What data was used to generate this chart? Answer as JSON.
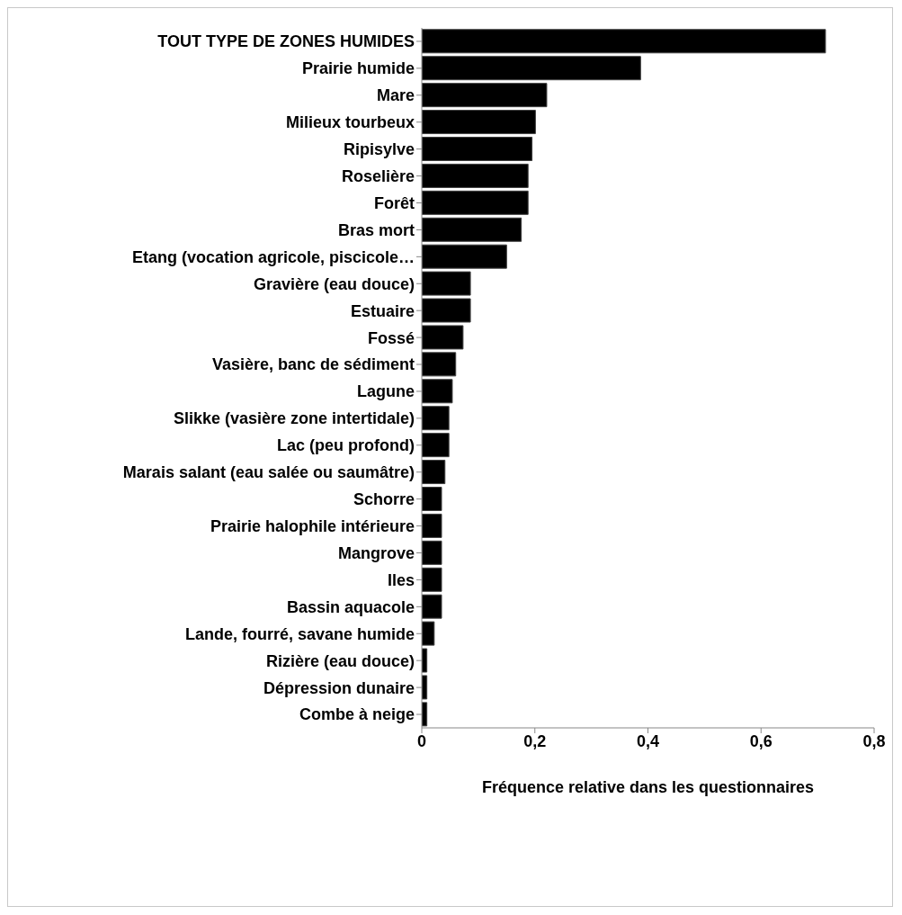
{
  "chart_data": {
    "type": "bar",
    "orientation": "horizontal",
    "xlabel": "Fréquence relative dans les questionnaires",
    "categories": [
      "TOUT TYPE DE ZONES HUMIDES",
      "Prairie humide",
      "Mare",
      "Milieux tourbeux",
      "Ripisylve",
      "Roselière",
      "Forêt",
      "Bras mort",
      "Etang (vocation agricole, piscicole…",
      "Gravière (eau douce)",
      "Estuaire",
      "Fossé",
      "Vasière, banc de sédiment",
      "Lagune",
      "Slikke (vasière zone intertidale)",
      "Lac (peu profond)",
      "Marais salant (eau salée ou saumâtre)",
      "Schorre",
      "Prairie halophile intérieure",
      "Mangrove",
      "Iles",
      "Bassin aquacole",
      "Lande, fourré, savane humide",
      "Rizière (eau douce)",
      "Dépression dunaire",
      "Combe à neige"
    ],
    "values": [
      0.714,
      0.387,
      0.221,
      0.201,
      0.195,
      0.188,
      0.188,
      0.176,
      0.15,
      0.086,
      0.086,
      0.073,
      0.06,
      0.054,
      0.048,
      0.048,
      0.041,
      0.035,
      0.035,
      0.035,
      0.035,
      0.035,
      0.022,
      0.009,
      0.009,
      0.009
    ],
    "color": "#000000",
    "xlim": [
      0,
      0.8
    ],
    "xticks": [
      0,
      {
        "value": 0.2,
        "label": "0,2"
      },
      {
        "value": 0.4,
        "label": "0,4"
      },
      {
        "value": 0.6,
        "label": "0,6"
      },
      {
        "value": 0.8,
        "label": "0,8"
      }
    ],
    "grid": false,
    "legend": false
  }
}
